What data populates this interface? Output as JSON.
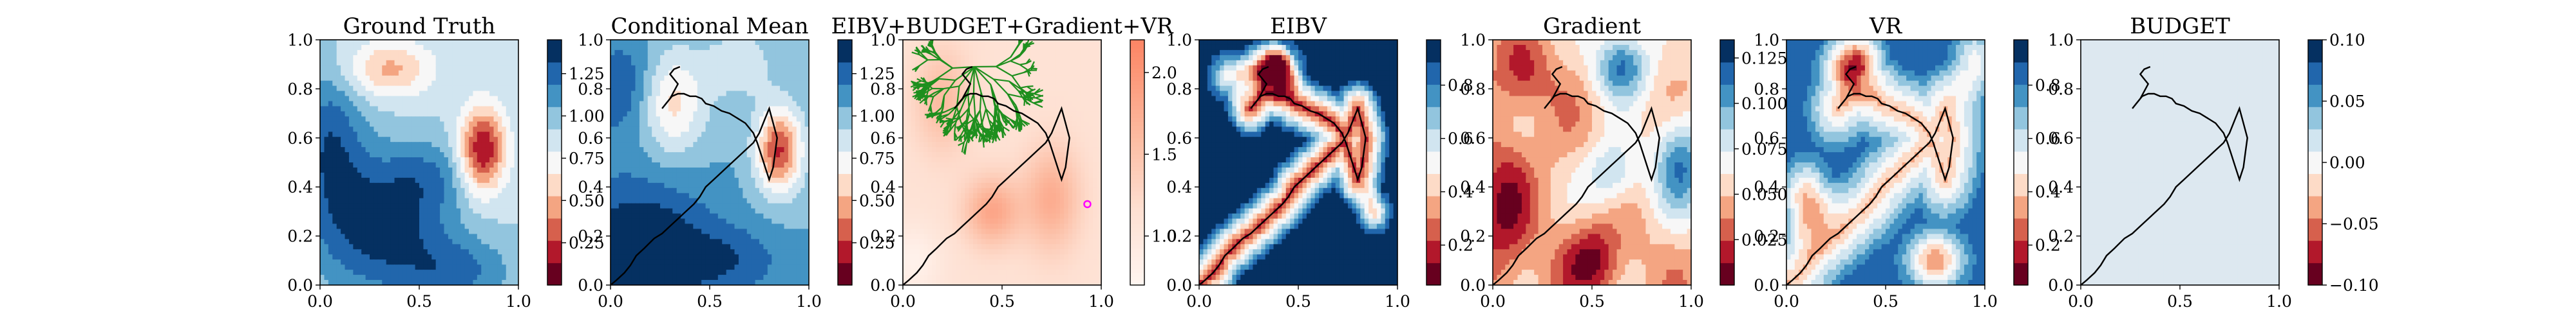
{
  "chart_data": [
    {
      "type": "heatmap",
      "title": "Ground Truth",
      "xlim": [
        0,
        1
      ],
      "ylim": [
        0,
        1
      ],
      "x_ticks": [
        "0.0",
        "0.5",
        "1.0"
      ],
      "y_ticks": [
        "0.0",
        "0.2",
        "0.4",
        "0.6",
        "0.8",
        "1.0"
      ],
      "colorbar": {
        "colormap": "RdBu",
        "range": [
          0.0,
          1.45
        ],
        "ticks": [
          "0.25",
          "0.50",
          "0.75",
          "1.00",
          "1.25"
        ],
        "tick_values": [
          0.25,
          0.5,
          0.75,
          1.0,
          1.25
        ]
      },
      "path": false
    },
    {
      "type": "heatmap",
      "title": "Conditional Mean",
      "xlim": [
        0,
        1
      ],
      "ylim": [
        0,
        1
      ],
      "x_ticks": [
        "0.0",
        "0.5",
        "1.0"
      ],
      "y_ticks": [
        "0.0",
        "0.2",
        "0.4",
        "0.6",
        "0.8",
        "1.0"
      ],
      "colorbar": {
        "colormap": "RdBu",
        "range": [
          0.0,
          1.45
        ],
        "ticks": [
          "0.25",
          "0.50",
          "0.75",
          "1.00",
          "1.25"
        ],
        "tick_values": [
          0.25,
          0.5,
          0.75,
          1.0,
          1.25
        ]
      },
      "path": true
    },
    {
      "type": "heatmap",
      "title": "EIBV+BUDGET+Gradient+VR",
      "xlim": [
        0,
        1
      ],
      "ylim": [
        0,
        1
      ],
      "x_ticks": [
        "0.0",
        "0.5",
        "1.0"
      ],
      "y_ticks": [
        "0.0",
        "0.2",
        "0.4",
        "0.6",
        "0.8",
        "1.0"
      ],
      "colorbar": {
        "colormap": "Reds",
        "range": [
          0.7,
          2.2
        ],
        "ticks": [
          "1.0",
          "1.5",
          "2.0"
        ],
        "tick_values": [
          1.0,
          1.5,
          2.0
        ]
      },
      "path": true,
      "rrt_tree": true
    },
    {
      "type": "heatmap",
      "title": "EIBV",
      "xlim": [
        0,
        1
      ],
      "ylim": [
        0,
        1
      ],
      "x_ticks": [
        "0.0",
        "0.5",
        "1.0"
      ],
      "y_ticks": [
        "0.0",
        "0.2",
        "0.4",
        "0.6",
        "0.8",
        "1.0"
      ],
      "colorbar": {
        "colormap": "RdBu",
        "range": [
          0.05,
          0.97
        ],
        "ticks": [
          "0.2",
          "0.4",
          "0.6",
          "0.8"
        ],
        "tick_values": [
          0.2,
          0.4,
          0.6,
          0.8
        ]
      },
      "path": true
    },
    {
      "type": "heatmap",
      "title": "Gradient",
      "xlim": [
        0,
        1
      ],
      "ylim": [
        0,
        1
      ],
      "x_ticks": [
        "0.0",
        "0.5",
        "1.0"
      ],
      "y_ticks": [
        "0.0",
        "0.2",
        "0.4",
        "0.6",
        "0.8",
        "1.0"
      ],
      "colorbar": {
        "colormap": "RdBu",
        "range": [
          0.0,
          0.135
        ],
        "ticks": [
          "0.025",
          "0.050",
          "0.075",
          "0.100",
          "0.125"
        ],
        "tick_values": [
          0.025,
          0.05,
          0.075,
          0.1,
          0.125
        ]
      },
      "path": true
    },
    {
      "type": "heatmap",
      "title": "VR",
      "xlim": [
        0,
        1
      ],
      "ylim": [
        0,
        1
      ],
      "x_ticks": [
        "0.0",
        "0.5",
        "1.0"
      ],
      "y_ticks": [
        "0.0",
        "0.2",
        "0.4",
        "0.6",
        "0.8",
        "1.0"
      ],
      "colorbar": {
        "colormap": "RdBu",
        "range": [
          0.05,
          0.97
        ],
        "ticks": [
          "0.2",
          "0.4",
          "0.6",
          "0.8"
        ],
        "tick_values": [
          0.2,
          0.4,
          0.6,
          0.8
        ]
      },
      "path": true
    },
    {
      "type": "heatmap",
      "title": "BUDGET",
      "xlim": [
        0,
        1
      ],
      "ylim": [
        0,
        1
      ],
      "x_ticks": [
        "0.0",
        "0.5",
        "1.0"
      ],
      "y_ticks": [
        "0.0",
        "0.2",
        "0.4",
        "0.6",
        "0.8",
        "1.0"
      ],
      "colorbar": {
        "colormap": "RdBu",
        "range": [
          -0.1,
          0.1
        ],
        "ticks": [
          "−0.10",
          "−0.05",
          "0.00",
          "0.05",
          "0.10"
        ],
        "tick_values": [
          -0.1,
          -0.05,
          0.0,
          0.05,
          0.1
        ]
      },
      "path": true,
      "uniform_value": 0.0
    }
  ],
  "path": {
    "x": [
      0.0,
      0.03,
      0.07,
      0.1,
      0.13,
      0.17,
      0.22,
      0.26,
      0.3,
      0.34,
      0.38,
      0.42,
      0.45,
      0.48,
      0.52,
      0.56,
      0.6,
      0.64,
      0.68,
      0.72,
      0.75,
      0.78,
      0.8,
      0.82,
      0.84,
      0.83,
      0.82,
      0.8,
      0.78,
      0.76,
      0.74,
      0.72,
      0.68,
      0.64,
      0.6,
      0.56,
      0.52,
      0.48,
      0.46,
      0.43,
      0.4,
      0.37,
      0.34,
      0.31,
      0.28,
      0.26,
      0.3,
      0.34,
      0.3,
      0.32,
      0.35
    ],
    "y": [
      0.0,
      0.02,
      0.05,
      0.08,
      0.12,
      0.15,
      0.19,
      0.21,
      0.24,
      0.27,
      0.3,
      0.33,
      0.36,
      0.4,
      0.43,
      0.46,
      0.49,
      0.52,
      0.55,
      0.58,
      0.62,
      0.68,
      0.72,
      0.66,
      0.6,
      0.54,
      0.48,
      0.43,
      0.48,
      0.53,
      0.58,
      0.62,
      0.66,
      0.68,
      0.7,
      0.71,
      0.73,
      0.74,
      0.76,
      0.77,
      0.77,
      0.78,
      0.78,
      0.77,
      0.74,
      0.72,
      0.76,
      0.82,
      0.86,
      0.88,
      0.89
    ]
  },
  "colors": {
    "path": "#000000",
    "tree": "#1e8f1e",
    "marker": "#ff00ff"
  }
}
